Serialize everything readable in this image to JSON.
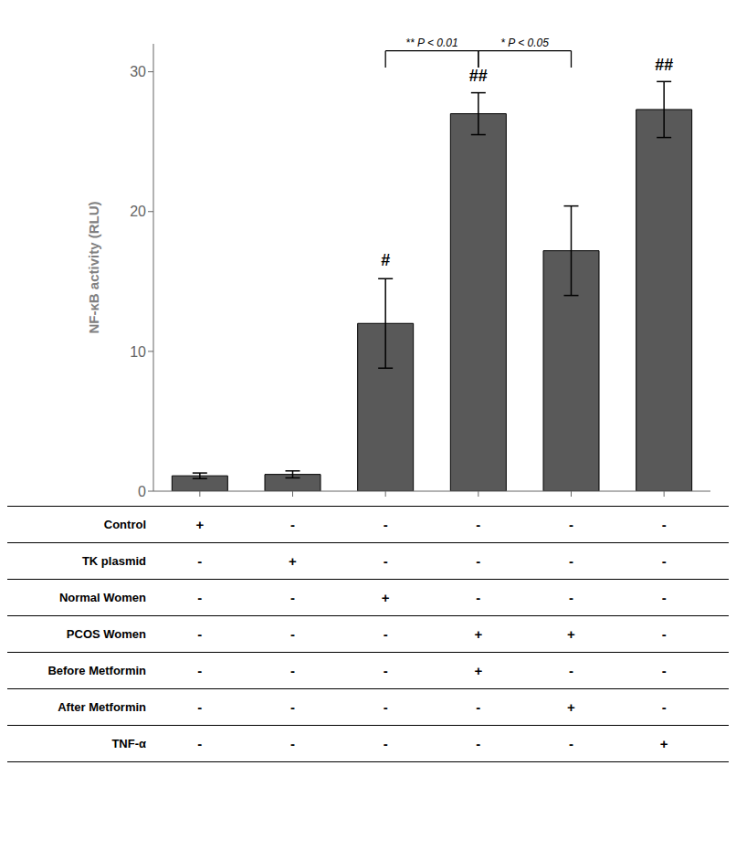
{
  "chart_data": {
    "type": "bar",
    "ylabel": "NF-κB activity (RLU)",
    "categories": [
      null,
      null,
      null,
      null,
      null,
      null
    ],
    "values": [
      1.1,
      1.2,
      12.0,
      27.0,
      17.2,
      27.3
    ],
    "errors": [
      0.2,
      0.25,
      3.2,
      1.5,
      3.2,
      2.0
    ],
    "color": "#595959",
    "ylim": [
      0,
      32
    ],
    "yticks": [
      0,
      10,
      20,
      30
    ],
    "annotations": [
      {
        "text": "#",
        "index": 2,
        "y": 15.8
      },
      {
        "text": "##",
        "index": 3,
        "y": 29.0
      },
      {
        "text": "##",
        "index": 5,
        "y": 29.8
      }
    ],
    "brackets": [
      {
        "from": 2,
        "to": 3,
        "y": 31.5,
        "bottom": 30.3,
        "label": "** P < 0.01"
      },
      {
        "from": 3,
        "to": 4,
        "y": 31.5,
        "bottom": 30.3,
        "label": "* P < 0.05"
      }
    ],
    "table": [
      {
        "label": "Control",
        "values": [
          "+",
          "-",
          "-",
          "-",
          "-",
          "-"
        ]
      },
      {
        "label": "TK plasmid",
        "values": [
          "-",
          "+",
          "-",
          "-",
          "-",
          "-"
        ]
      },
      {
        "label": "Normal Women",
        "values": [
          "-",
          "-",
          "+",
          "-",
          "-",
          "-"
        ]
      },
      {
        "label": "PCOS Women",
        "values": [
          "-",
          "-",
          "-",
          "+",
          "+",
          "-"
        ]
      },
      {
        "label": "Before Metformin",
        "values": [
          "-",
          "-",
          "-",
          "+",
          "-",
          "-"
        ]
      },
      {
        "label": "After Metformin",
        "values": [
          "-",
          "-",
          "-",
          "-",
          "+",
          "-"
        ]
      },
      {
        "label": "TNF-α",
        "values": [
          "-",
          "-",
          "-",
          "-",
          "-",
          "+"
        ]
      }
    ]
  }
}
